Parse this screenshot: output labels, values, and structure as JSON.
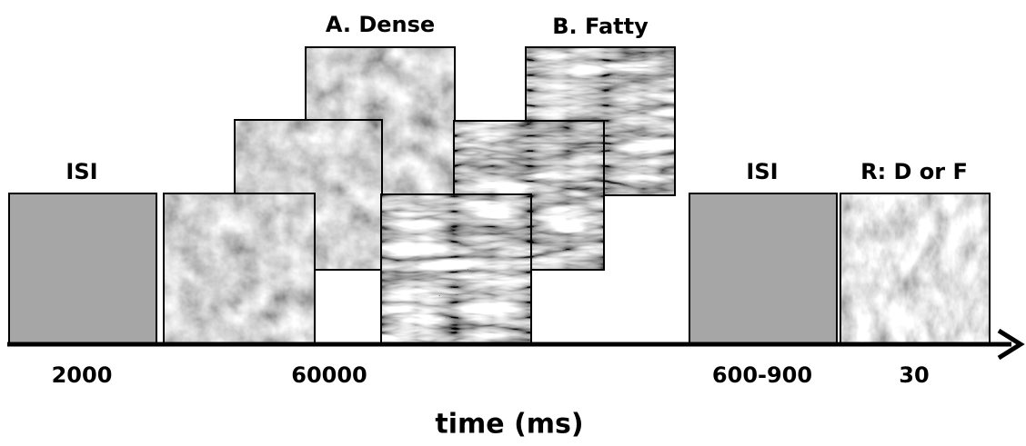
{
  "stages": [
    {
      "label": "ISI",
      "duration": "2000"
    },
    {
      "duration": "60000"
    },
    {
      "label": "ISI",
      "duration": "600-900"
    },
    {
      "label": "R: D or F",
      "duration": "30"
    }
  ],
  "examples": {
    "dense": "A. Dense",
    "fatty": "B. Fatty"
  },
  "axis_label": "time (ms)"
}
